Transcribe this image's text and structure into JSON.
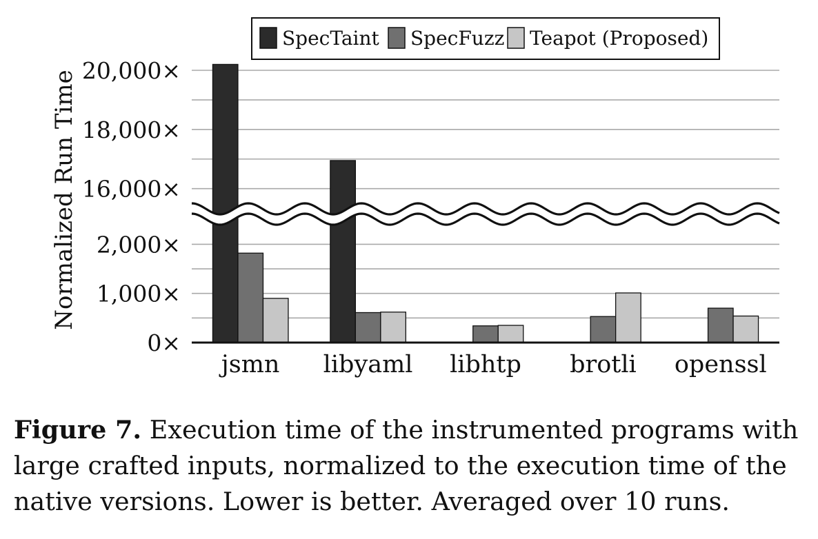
{
  "chart_data": {
    "type": "bar",
    "categories": [
      "jsmn",
      "libyaml",
      "libhtp",
      "brotli",
      "openssl"
    ],
    "series": [
      {
        "name": "SpecTaint",
        "color": "#2b2b2b",
        "values": [
          20200,
          16950,
          null,
          null,
          null
        ]
      },
      {
        "name": "SpecFuzz",
        "color": "#707070",
        "values": [
          1820,
          610,
          340,
          530,
          700
        ]
      },
      {
        "name": "Teapot (Proposed)",
        "color": "#c6c6c6",
        "values": [
          900,
          620,
          350,
          1010,
          540
        ]
      }
    ],
    "ylabel": "Normalized Run Time",
    "xlabel": "",
    "axis_break": {
      "lower_range": [
        0,
        2300
      ],
      "upper_range": [
        15200,
        20000
      ]
    },
    "lower_ticks": [
      0,
      1000,
      2000
    ],
    "lower_tick_labels": [
      "0×",
      "1,000×",
      "2,000×"
    ],
    "upper_ticks": [
      16000,
      18000,
      20000
    ],
    "upper_tick_labels": [
      "16,000×",
      "18,000×",
      "20,000×"
    ],
    "grid": true,
    "legend_position": "top"
  },
  "caption": {
    "label": "Figure 7.",
    "text": " Execution time of the instrumented programs with large crafted inputs, normalized to the execution time of the native versions. Lower is better. Averaged over 10 runs."
  }
}
